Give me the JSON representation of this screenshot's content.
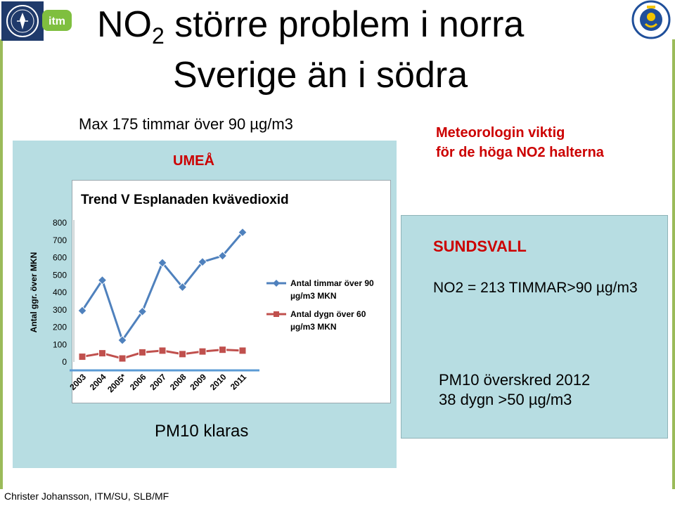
{
  "header": {
    "title_line1_main": "NO",
    "title_line1_sub": "2",
    "title_line1_rest": " större problem i norra",
    "title_line2": "Sverige än i södra"
  },
  "logos": {
    "itm_text": "itm"
  },
  "umea": {
    "max_text": "Max 175 timmar över 90 µg/m3",
    "label": "UMEÅ",
    "pm10_text": "PM10 klaras"
  },
  "meteorology": {
    "line1": "Meteorologin viktig",
    "line2": "för de höga NO2 halterna"
  },
  "sundsvall": {
    "label": "SUNDSVALL",
    "no2_text": "NO2 = 213 TIMMAR>90 µg/m3",
    "pm10_line1": "PM10 överskred 2012",
    "pm10_line2": "38 dygn >50 µg/m3"
  },
  "footer": {
    "author": "Christer Johansson, ITM/SU, SLB/MF"
  },
  "colors": {
    "accent_red": "#cc0000",
    "panel_bg": "#b7dde2",
    "series_blue": "#4f81bd",
    "series_red": "#c0504d",
    "accent_green": "#9bbb59"
  },
  "chart_data": {
    "type": "line",
    "title": "Trend V Esplanaden kvävedioxid",
    "ylabel": "Antal ggr. över MKN",
    "xlabel": "",
    "categories": [
      "2003",
      "2004",
      "2005*",
      "2006",
      "2007",
      "2008",
      "2009",
      "2010",
      "2011"
    ],
    "ylim": [
      0,
      800
    ],
    "yticks": [
      "0",
      "100",
      "200",
      "300",
      "400",
      "500",
      "600",
      "700",
      "800"
    ],
    "grid": false,
    "legend_position": "right",
    "series": [
      {
        "name_line1": "Antal timmar över 90",
        "name_line2": "µg/m3 MKN",
        "color": "#4f81bd",
        "marker": "diamond",
        "values": [
          295,
          470,
          125,
          290,
          570,
          430,
          575,
          610,
          745
        ]
      },
      {
        "name_line1": "Antal dygn över 60",
        "name_line2": "µg/m3 MKN",
        "color": "#c0504d",
        "marker": "square",
        "values": [
          30,
          50,
          20,
          55,
          65,
          45,
          60,
          70,
          65
        ]
      }
    ]
  }
}
